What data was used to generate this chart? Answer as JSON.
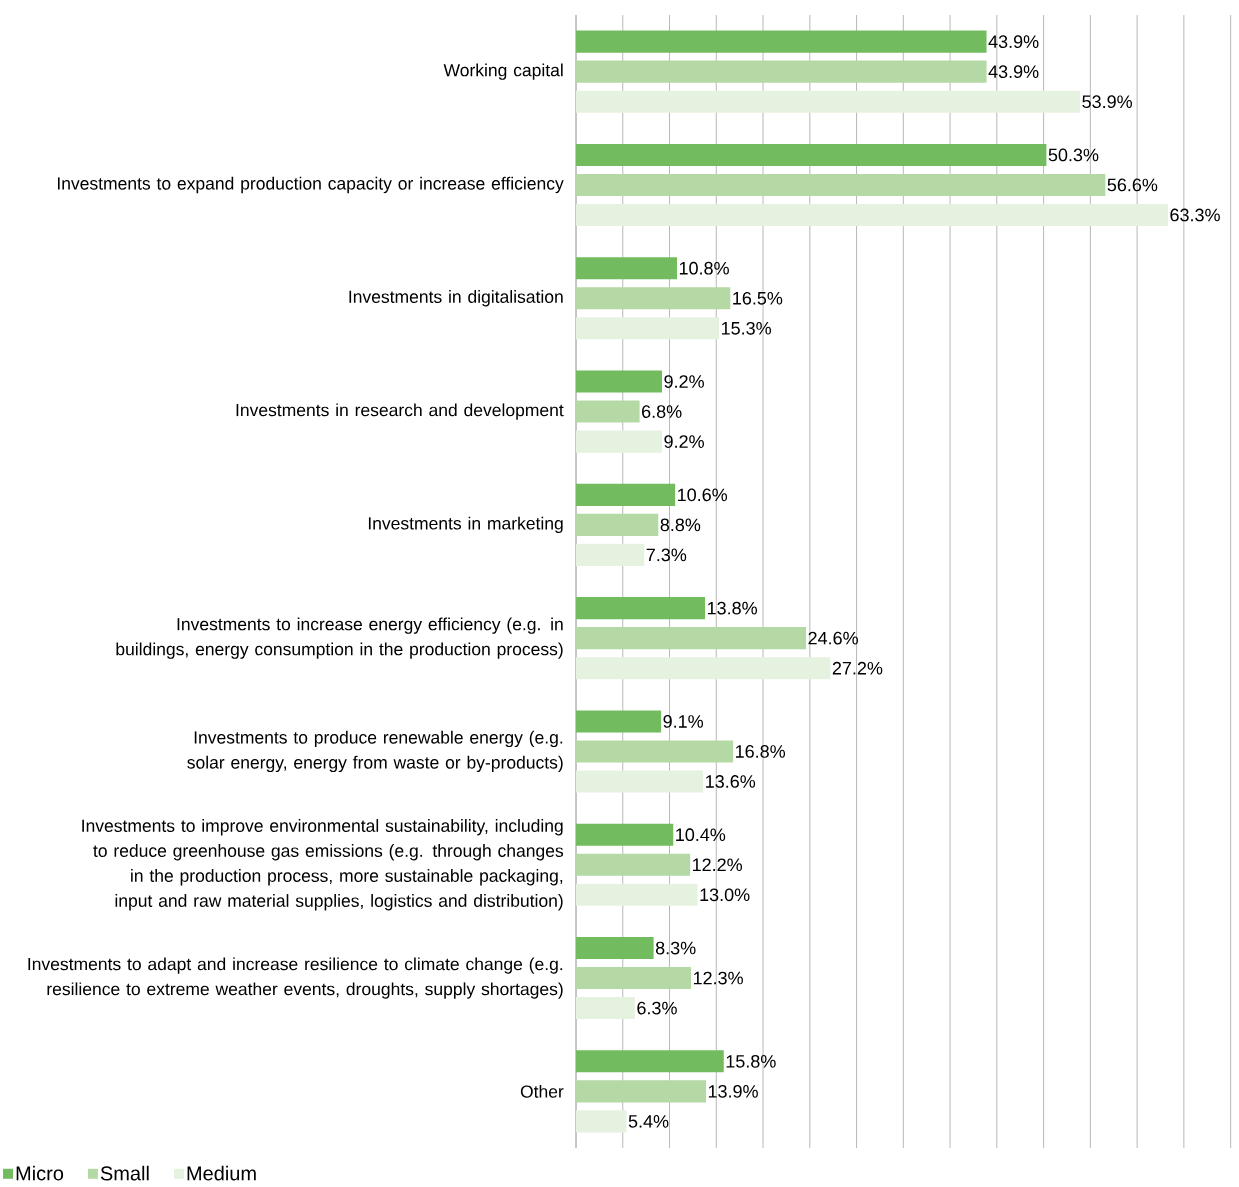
{
  "chart_data": {
    "type": "bar",
    "orientation": "horizontal",
    "categories": [
      "Working capital",
      "Investments to expand production capacity or increase efficiency",
      "Investments in digitalisation",
      "Investments in research and development",
      "Investments in marketing",
      "Investments to increase energy efficiency (e.g. in buildings, energy consumption in the production process)",
      "Investments to produce renewable energy (e.g. solar energy, energy from waste or by-products)",
      "Investments to improve environmental sustainability, including to reduce greenhouse gas emissions (e.g. through changes in the production process, more sustainable packaging, input and raw material supplies, logistics and distribution)",
      "Investments to adapt and increase resilience to climate change (e.g. resilience to extreme weather events, droughts, supply shortages)",
      "Other"
    ],
    "series": [
      {
        "name": "Micro",
        "color": "#72bb5f",
        "values": [
          43.9,
          50.3,
          10.8,
          9.2,
          10.6,
          13.8,
          9.1,
          10.4,
          8.3,
          15.8
        ],
        "value_labels": [
          "43.9%",
          "50.3%",
          "10.8%",
          "9.2%",
          "10.6%",
          "13.8%",
          "9.1%",
          "10.4%",
          "8.3%",
          "15.8%"
        ]
      },
      {
        "name": "Small",
        "color": "#b5d9a4",
        "values": [
          43.9,
          56.6,
          16.5,
          6.8,
          8.8,
          24.6,
          16.8,
          12.2,
          12.3,
          13.9
        ],
        "value_labels": [
          "43.9%",
          "56.6%",
          "16.5%",
          "6.8%",
          "8.8%",
          "24.6%",
          "16.8%",
          "12.2%",
          "12.3%",
          "13.9%"
        ]
      },
      {
        "name": "Medium",
        "color": "#e6f2e0",
        "values": [
          53.9,
          63.3,
          15.3,
          9.2,
          7.3,
          27.2,
          13.6,
          13.0,
          6.3,
          5.4
        ],
        "value_labels": [
          "53.9%",
          "63.3%",
          "15.3%",
          "9.2%",
          "7.3%",
          "27.2%",
          "13.6%",
          "13.0%",
          "6.3%",
          "5.4%"
        ]
      }
    ],
    "tick_labels": "y",
    "grid": "x",
    "legend": "bottom left"
  }
}
